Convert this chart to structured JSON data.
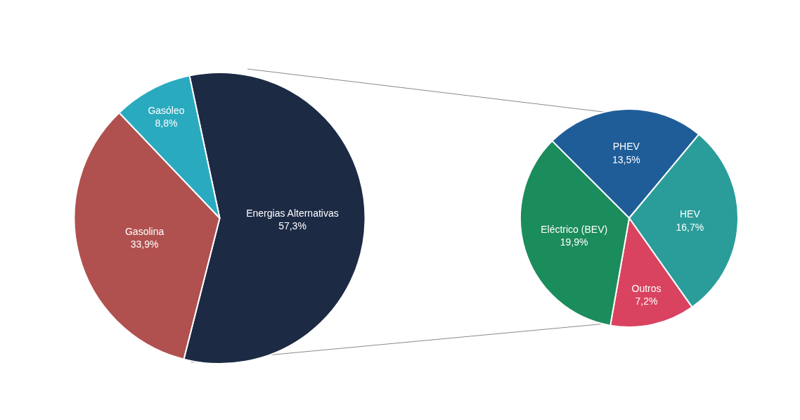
{
  "chart_data": [
    {
      "type": "pie",
      "categories": [
        "Energias Alternativas",
        "Gasolina",
        "Gasóleo"
      ],
      "values": [
        57.3,
        33.9,
        8.8
      ],
      "value_labels": [
        "57,3%",
        "33,9%",
        "8,8%"
      ],
      "colors": [
        "#1c2a44",
        "#b0514f",
        "#2aaabf"
      ]
    },
    {
      "type": "pie",
      "categories": [
        "PHEV",
        "HEV",
        "Outros",
        "Eléctrico (BEV)"
      ],
      "values": [
        13.5,
        16.7,
        7.2,
        19.9
      ],
      "value_labels": [
        "13,5%",
        "16,7%",
        "7,2%",
        "19,9%"
      ],
      "colors": [
        "#1f5d99",
        "#2a9d9a",
        "#d9435f",
        "#1b8c5c"
      ]
    }
  ]
}
